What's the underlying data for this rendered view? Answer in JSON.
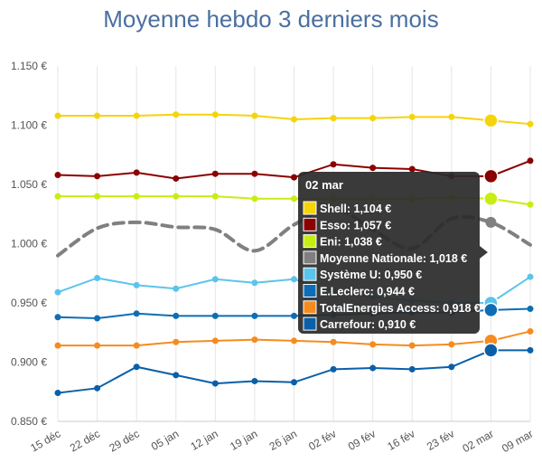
{
  "chart_data": {
    "type": "line",
    "title": "Moyenne hebdo 3 derniers mois",
    "xlabel": "",
    "ylabel": "",
    "categories": [
      "15 déc",
      "22 déc",
      "29 déc",
      "05 jan",
      "12 jan",
      "19 jan",
      "26 jan",
      "02 fév",
      "09 fév",
      "16 fév",
      "23 fév",
      "02 mar",
      "09 mar"
    ],
    "y_ticks": [
      "0.850 €",
      "0.900 €",
      "0.950 €",
      "1.000 €",
      "1.050 €",
      "1.100 €",
      "1.150 €"
    ],
    "ylim": [
      0.85,
      1.15
    ],
    "grid": "vertical",
    "highlighted_category": "02 mar",
    "series": [
      {
        "name": "Shell",
        "color": "#f5d40a",
        "style": "solid",
        "values": [
          1.108,
          1.108,
          1.108,
          1.109,
          1.109,
          1.108,
          1.105,
          1.106,
          1.106,
          1.107,
          1.107,
          1.104,
          1.101
        ]
      },
      {
        "name": "Esso",
        "color": "#8b0000",
        "style": "solid",
        "values": [
          1.058,
          1.057,
          1.06,
          1.055,
          1.059,
          1.059,
          1.056,
          1.067,
          1.064,
          1.063,
          1.057,
          1.057,
          1.07
        ]
      },
      {
        "name": "Eni",
        "color": "#c6ee12",
        "style": "solid",
        "values": [
          1.04,
          1.04,
          1.04,
          1.04,
          1.04,
          1.038,
          1.038,
          1.038,
          1.038,
          1.038,
          1.039,
          1.038,
          1.033
        ]
      },
      {
        "name": "Moyenne Nationale",
        "color": "#808080",
        "style": "dashed",
        "values": [
          0.99,
          1.013,
          1.018,
          1.014,
          1.012,
          0.994,
          1.016,
          1.03,
          1.012,
          0.996,
          1.021,
          1.018,
          0.999
        ]
      },
      {
        "name": "Système U",
        "color": "#5bc4ec",
        "style": "solid",
        "values": [
          0.959,
          0.971,
          0.965,
          0.962,
          0.97,
          0.967,
          0.97,
          0.96,
          0.955,
          0.952,
          0.95,
          0.95,
          0.972
        ]
      },
      {
        "name": "E.Leclerc",
        "color": "#0d6eb5",
        "style": "solid",
        "values": [
          0.938,
          0.937,
          0.941,
          0.939,
          0.939,
          0.939,
          0.939,
          0.94,
          0.941,
          0.942,
          0.942,
          0.944,
          0.945
        ]
      },
      {
        "name": "TotalEnergies Access",
        "color": "#f68b1f",
        "style": "solid",
        "values": [
          0.914,
          0.914,
          0.914,
          0.917,
          0.918,
          0.919,
          0.918,
          0.917,
          0.915,
          0.914,
          0.915,
          0.918,
          0.926
        ]
      },
      {
        "name": "Carrefour",
        "color": "#0a5fa8",
        "style": "solid",
        "values": [
          0.874,
          0.878,
          0.896,
          0.889,
          0.882,
          0.884,
          0.883,
          0.894,
          0.895,
          0.894,
          0.896,
          0.91,
          0.91
        ]
      }
    ],
    "tooltip": {
      "title": "02 mar",
      "rows": [
        {
          "label": "Shell: 1,104 €",
          "color": "#f5d40a"
        },
        {
          "label": "Esso: 1,057 €",
          "color": "#8b0000"
        },
        {
          "label": "Eni: 1,038 €",
          "color": "#c6ee12"
        },
        {
          "label": "Moyenne Nationale: 1,018 €",
          "color": "#808080"
        },
        {
          "label": "Système U: 0,950 €",
          "color": "#5bc4ec"
        },
        {
          "label": "E.Leclerc: 0,944 €",
          "color": "#0d6eb5"
        },
        {
          "label": "TotalEnergies Access: 0,918 €",
          "color": "#f68b1f"
        },
        {
          "label": "Carrefour: 0,910 €",
          "color": "#0a5fa8"
        }
      ]
    }
  }
}
